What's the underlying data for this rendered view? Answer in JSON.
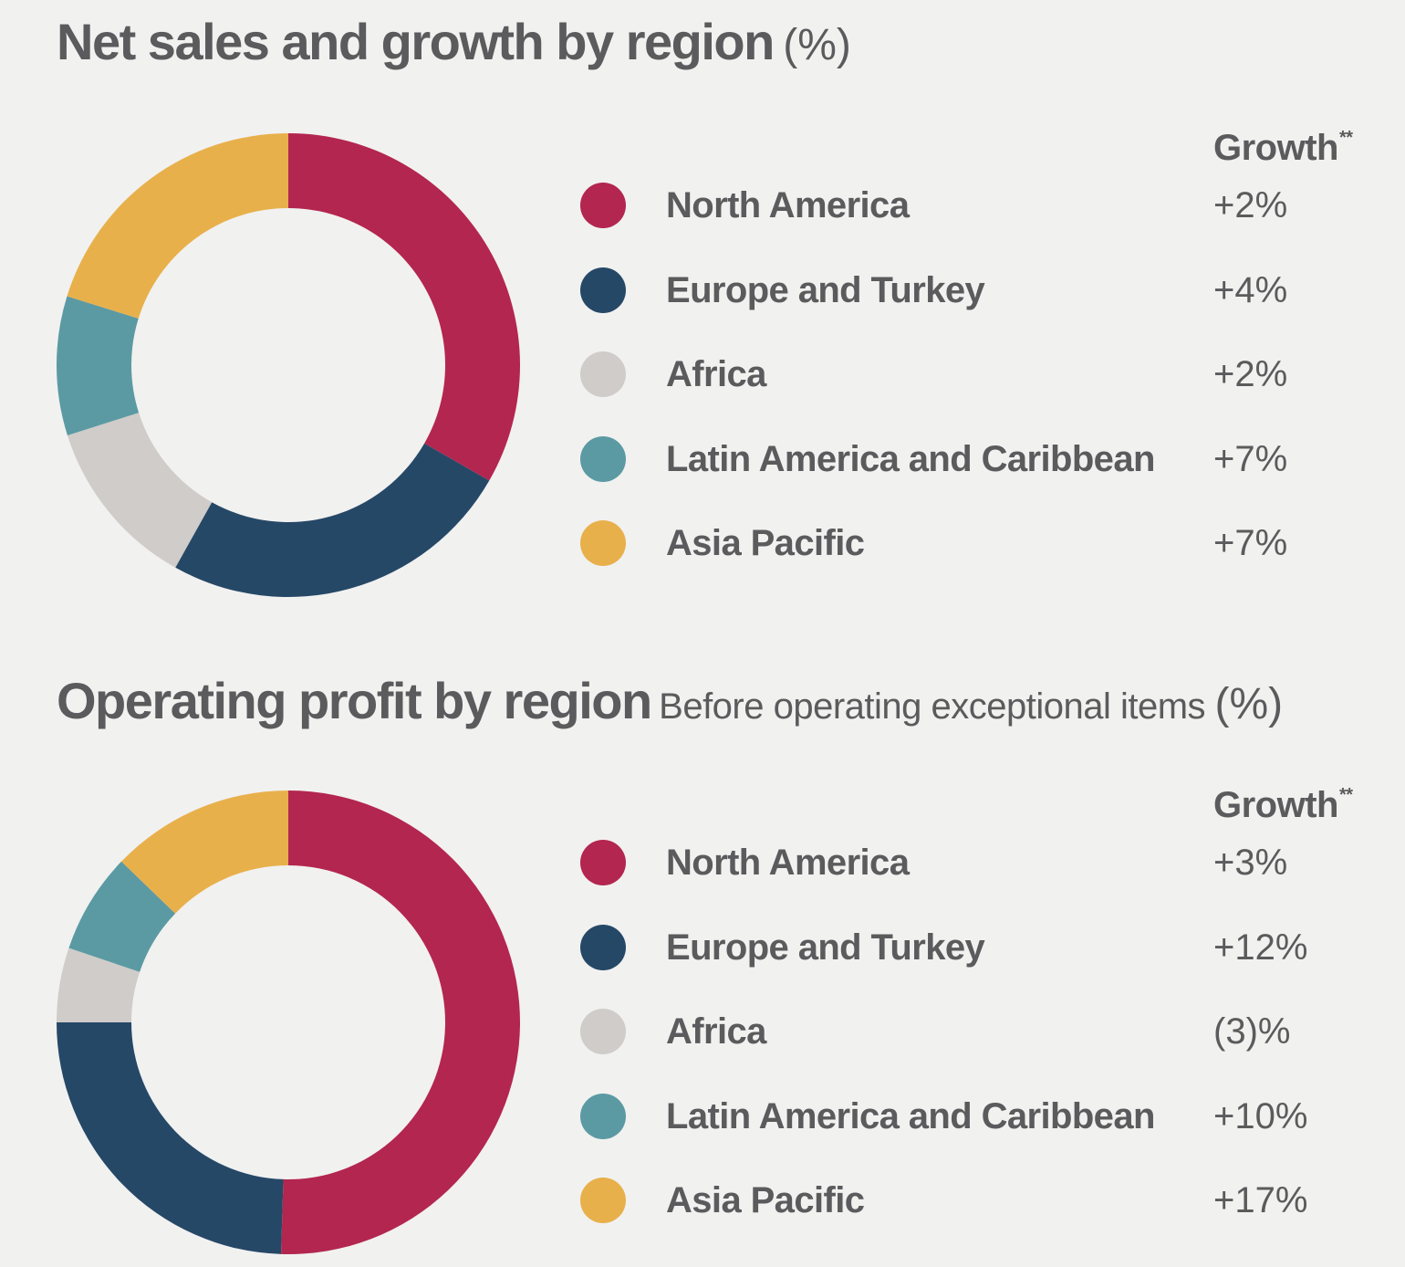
{
  "chart_data": [
    {
      "type": "pie",
      "title": "Net sales and growth by region",
      "subtitle": "",
      "unit": "(%)",
      "growth_header": "Growth",
      "growth_footnote_marker": "**",
      "categories": [
        "North America",
        "Europe and Turkey",
        "Africa",
        "Latin America and Caribbean",
        "Asia Pacific"
      ],
      "values": [
        33.3,
        24.8,
        12.0,
        9.7,
        20.2
      ],
      "growth": [
        "+2%",
        "+4%",
        "+2%",
        "+7%",
        "+7%"
      ],
      "colors": [
        "#b3264f",
        "#264867",
        "#cfccc9",
        "#5b9aa3",
        "#e8b04b"
      ],
      "legend_position": "right"
    },
    {
      "type": "pie",
      "title": "Operating profit by region",
      "subtitle": "Before operating exceptional items",
      "unit": "(%)",
      "growth_header": "Growth",
      "growth_footnote_marker": "**",
      "categories": [
        "North America",
        "Europe and Turkey",
        "Africa",
        "Latin America and Caribbean",
        "Asia Pacific"
      ],
      "values": [
        50.5,
        24.5,
        5.2,
        7.0,
        12.8
      ],
      "growth": [
        "+3%",
        "+12%",
        "(3)%",
        "+10%",
        "+17%"
      ],
      "colors": [
        "#b3264f",
        "#264867",
        "#cfccc9",
        "#5b9aa3",
        "#e8b04b"
      ],
      "legend_position": "right"
    }
  ]
}
